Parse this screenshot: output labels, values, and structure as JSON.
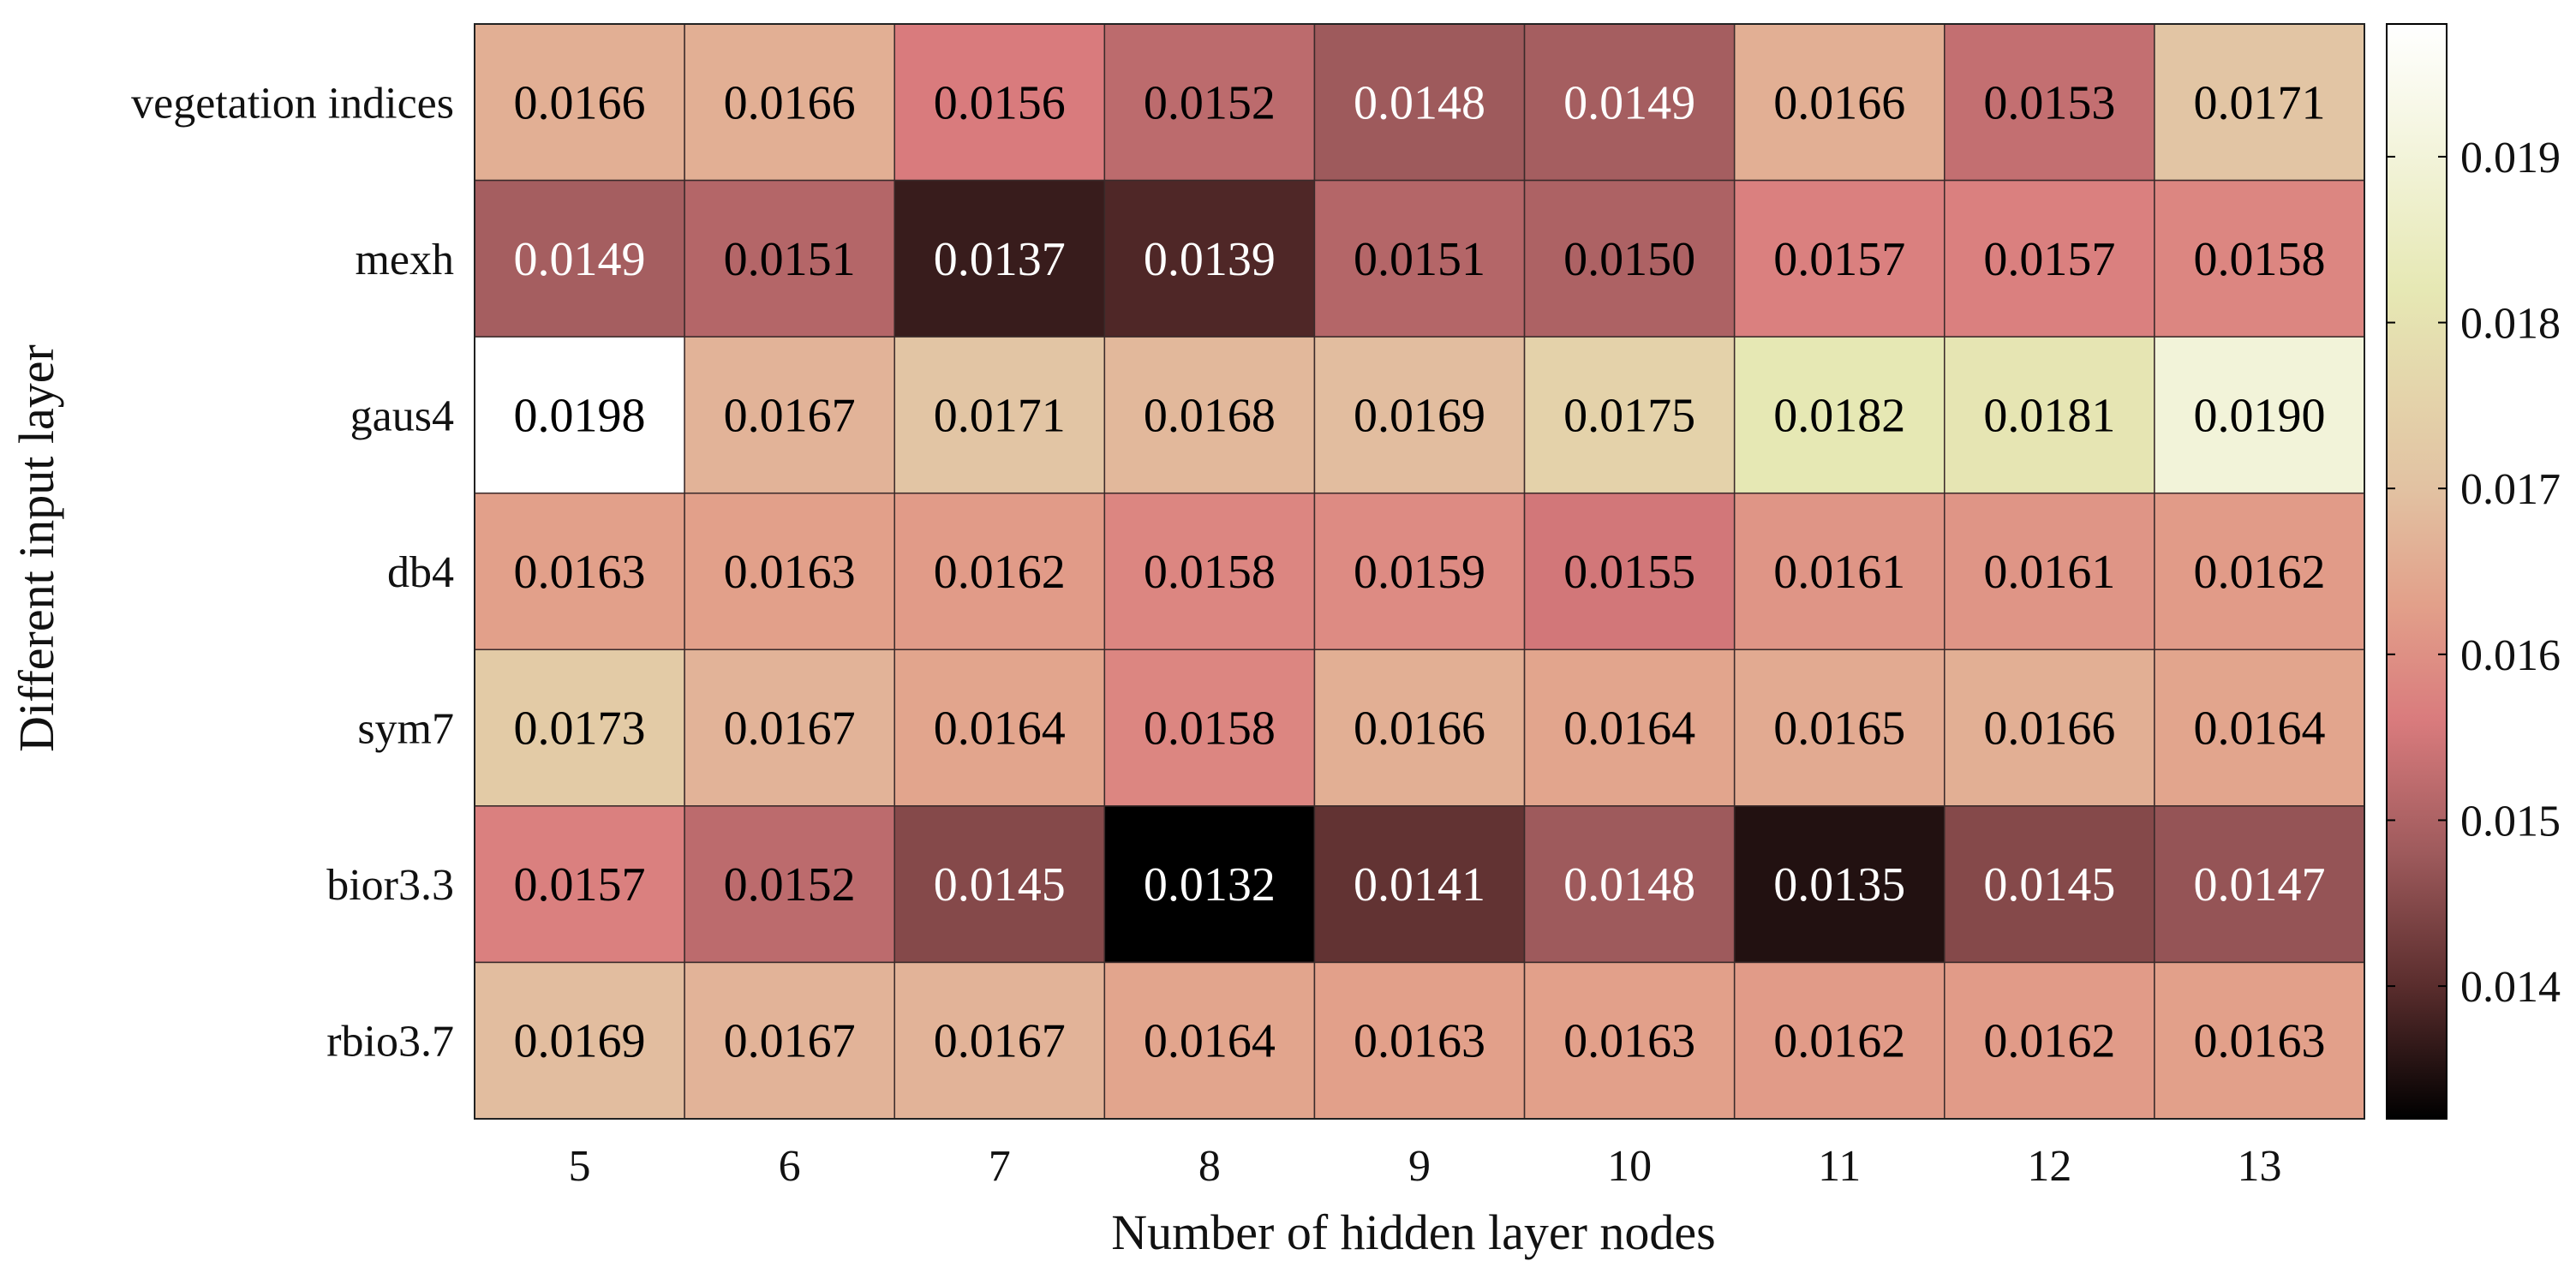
{
  "chart_data": {
    "type": "heatmap",
    "xlabel": "Number of hidden layer nodes",
    "ylabel": "Different input layer",
    "x_categories": [
      "5",
      "6",
      "7",
      "8",
      "9",
      "10",
      "11",
      "12",
      "13"
    ],
    "y_categories": [
      "vegetation indices",
      "mexh",
      "gaus4",
      "db4",
      "sym7",
      "bior3.3",
      "rbio3.7"
    ],
    "values": [
      [
        0.0166,
        0.0166,
        0.0156,
        0.0152,
        0.0148,
        0.0149,
        0.0166,
        0.0153,
        0.0171
      ],
      [
        0.0149,
        0.0151,
        0.0137,
        0.0139,
        0.0151,
        0.015,
        0.0157,
        0.0157,
        0.0158
      ],
      [
        0.0198,
        0.0167,
        0.0171,
        0.0168,
        0.0169,
        0.0175,
        0.0182,
        0.0181,
        0.019
      ],
      [
        0.0163,
        0.0163,
        0.0162,
        0.0158,
        0.0159,
        0.0155,
        0.0161,
        0.0161,
        0.0162
      ],
      [
        0.0173,
        0.0167,
        0.0164,
        0.0158,
        0.0166,
        0.0164,
        0.0165,
        0.0166,
        0.0164
      ],
      [
        0.0157,
        0.0152,
        0.0145,
        0.0132,
        0.0141,
        0.0148,
        0.0135,
        0.0145,
        0.0147
      ],
      [
        0.0169,
        0.0167,
        0.0167,
        0.0164,
        0.0163,
        0.0163,
        0.0162,
        0.0162,
        0.0163
      ]
    ],
    "cell_labels": [
      [
        "0.0166",
        "0.0166",
        "0.0156",
        "0.0152",
        "0.0148",
        "0.0149",
        "0.0166",
        "0.0153",
        "0.0171"
      ],
      [
        "0.0149",
        "0.0151",
        "0.0137",
        "0.0139",
        "0.0151",
        "0.0150",
        "0.0157",
        "0.0157",
        "0.0158"
      ],
      [
        "0.0198",
        "0.0167",
        "0.0171",
        "0.0168",
        "0.0169",
        "0.0175",
        "0.0182",
        "0.0181",
        "0.0190"
      ],
      [
        "0.0163",
        "0.0163",
        "0.0162",
        "0.0158",
        "0.0159",
        "0.0155",
        "0.0161",
        "0.0161",
        "0.0162"
      ],
      [
        "0.0173",
        "0.0167",
        "0.0164",
        "0.0158",
        "0.0166",
        "0.0164",
        "0.0165",
        "0.0166",
        "0.0164"
      ],
      [
        "0.0157",
        "0.0152",
        "0.0145",
        "0.0132",
        "0.0141",
        "0.0148",
        "0.0135",
        "0.0145",
        "0.0147"
      ],
      [
        "0.0169",
        "0.0167",
        "0.0167",
        "0.0164",
        "0.0163",
        "0.0163",
        "0.0162",
        "0.0162",
        "0.0163"
      ]
    ],
    "colorbar": {
      "range": [
        0.0132,
        0.0198
      ],
      "ticks": [
        0.014,
        0.015,
        0.016,
        0.017,
        0.018,
        0.019
      ],
      "tick_labels": [
        "0.014",
        "0.015",
        "0.016",
        "0.017",
        "0.018",
        "0.019"
      ],
      "colormap": [
        {
          "v": 0.0132,
          "color": "#000000"
        },
        {
          "v": 0.014,
          "color": "#5a2d2d"
        },
        {
          "v": 0.0148,
          "color": "#9e5a5c"
        },
        {
          "v": 0.0156,
          "color": "#d97b7d"
        },
        {
          "v": 0.0163,
          "color": "#e2a08a"
        },
        {
          "v": 0.017,
          "color": "#e2c2a2"
        },
        {
          "v": 0.0182,
          "color": "#e6e8b4"
        },
        {
          "v": 0.0198,
          "color": "#ffffff"
        }
      ],
      "text_dark_threshold": 0.015
    },
    "grid": false
  }
}
